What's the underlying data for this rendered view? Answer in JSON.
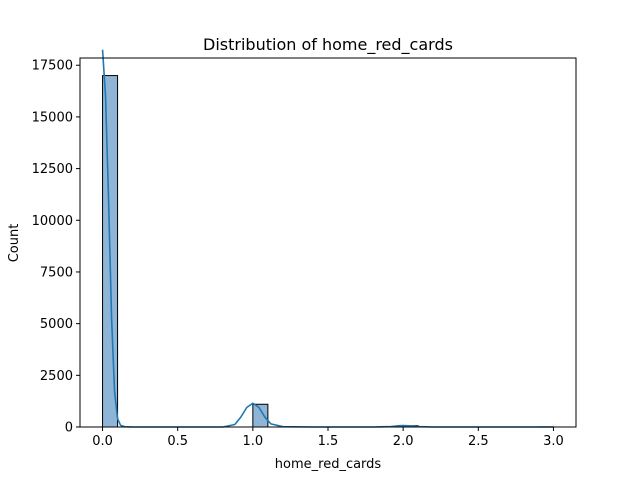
{
  "chart_data": {
    "type": "bar",
    "title": "Distribution of home_red_cards",
    "xlabel": "home_red_cards",
    "ylabel": "Count",
    "xlim": [
      -0.15,
      3.15
    ],
    "ylim": [
      0,
      17850
    ],
    "xticks": [
      0.0,
      0.5,
      1.0,
      1.5,
      2.0,
      2.5,
      3.0
    ],
    "xtick_labels": [
      "0.0",
      "0.5",
      "1.0",
      "1.5",
      "2.0",
      "2.5",
      "3.0"
    ],
    "yticks": [
      0,
      2500,
      5000,
      7500,
      10000,
      12500,
      15000,
      17500
    ],
    "ytick_labels": [
      "0",
      "2500",
      "5000",
      "7500",
      "10000",
      "12500",
      "15000",
      "17500"
    ],
    "bins": [
      {
        "x0": 0.0,
        "x1": 0.1,
        "count": 17000
      },
      {
        "x0": 1.0,
        "x1": 1.1,
        "count": 1100
      },
      {
        "x0": 2.0,
        "x1": 2.1,
        "count": 60
      },
      {
        "x0": 2.9,
        "x1": 3.0,
        "count": 5
      }
    ],
    "kde": {
      "x": [
        0.0,
        0.02,
        0.04,
        0.06,
        0.08,
        0.1,
        0.12,
        0.15,
        0.2,
        0.3,
        0.5,
        0.8,
        0.88,
        0.92,
        0.96,
        1.0,
        1.04,
        1.08,
        1.12,
        1.2,
        1.4,
        1.8,
        1.92,
        1.96,
        2.0,
        2.04,
        2.08,
        2.2,
        2.6,
        3.0
      ],
      "y": [
        18250,
        16000,
        11000,
        5300,
        1700,
        400,
        80,
        10,
        0,
        0,
        0,
        0,
        120,
        480,
        950,
        1150,
        950,
        480,
        150,
        15,
        0,
        0,
        20,
        55,
        70,
        55,
        20,
        0,
        0,
        0
      ]
    },
    "colors": {
      "bar_fill": "#8fb5d6",
      "bar_edge": "#000000",
      "kde_line": "#1f77b4"
    },
    "grid": false,
    "legend": "none"
  }
}
